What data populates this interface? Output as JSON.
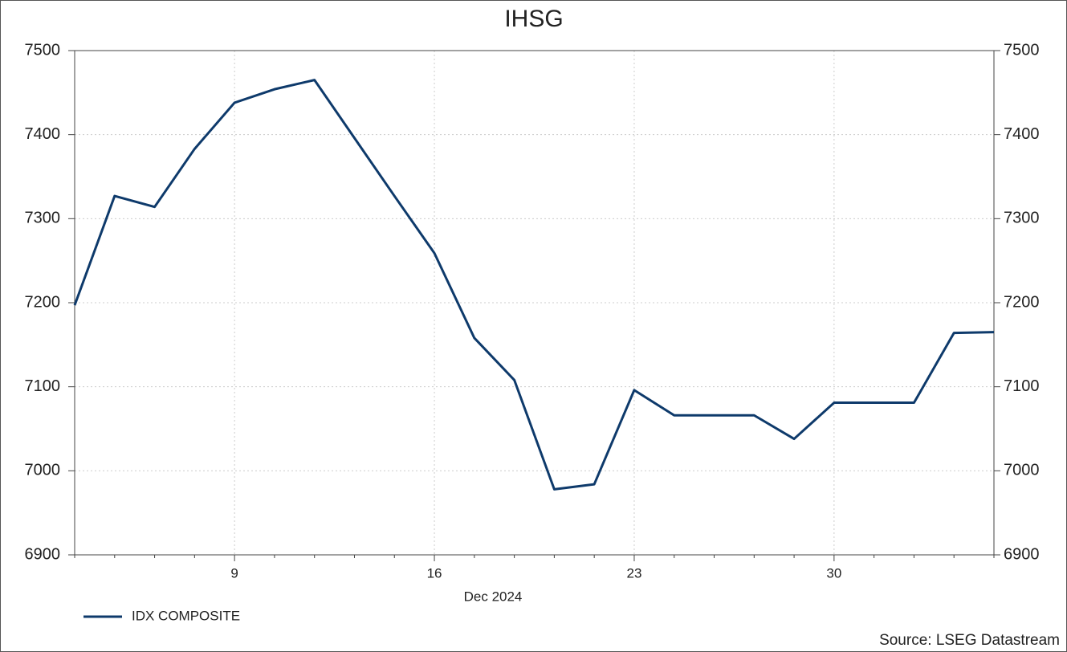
{
  "chart_data": {
    "type": "line",
    "title": "IHSG",
    "categories": [
      null,
      null,
      null,
      null,
      "9",
      null,
      null,
      null,
      null,
      "16",
      null,
      null,
      null,
      null,
      "23",
      null,
      null,
      null,
      null,
      "30",
      null,
      null,
      null,
      null
    ],
    "x_label": "Dec 2024",
    "series": [
      {
        "name": "IDX COMPOSITE",
        "color": "#0e3a6b",
        "values": [
          7197,
          7327,
          7314,
          7383,
          7438,
          7454,
          7465,
          7396,
          7327,
          7259,
          7158,
          7108,
          6978,
          6984,
          7096,
          7066,
          7066,
          7066,
          7038,
          7081,
          7081,
          7081,
          7164,
          7165
        ]
      }
    ],
    "ylim": [
      6900,
      7500
    ],
    "yticks": [
      6900,
      7000,
      7100,
      7200,
      7300,
      7400,
      7500
    ],
    "grid": true,
    "legend": "bottom-left",
    "source": "Source: LSEG Datastream"
  }
}
